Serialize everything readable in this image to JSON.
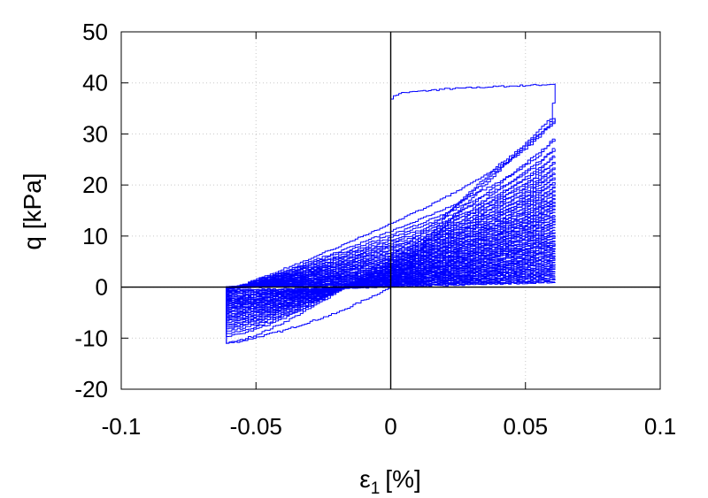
{
  "chart_data": {
    "type": "line",
    "title": "",
    "xlabel": {
      "symbol": "ε",
      "subscript": "1",
      "unit": "[%]"
    },
    "ylabel": "q [kPa]",
    "xlim": [
      -0.1,
      0.1
    ],
    "ylim": [
      -20,
      50
    ],
    "x_ticks": [
      -0.1,
      -0.05,
      0,
      0.05,
      0.1
    ],
    "x_tick_labels": [
      "-0.1",
      "-0.05",
      "0",
      "0.05",
      "0.1"
    ],
    "y_ticks": [
      -20,
      -10,
      0,
      10,
      20,
      30,
      40,
      50
    ],
    "y_tick_labels": [
      "-20",
      "-10",
      "0",
      "10",
      "20",
      "30",
      "40",
      "50"
    ],
    "grid": true,
    "grid_style": "dotted",
    "zero_lines": true,
    "series_color": "#0000ff",
    "series": [
      {
        "name": "",
        "description": "cyclic stress-strain loops with decaying amplitude",
        "x": [
          0.0,
          0.0,
          0.003,
          0.02,
          0.04,
          0.055,
          0.061,
          0.061,
          0.06,
          0.045,
          0.03,
          0.015,
          0.0,
          -0.015,
          -0.03,
          -0.045,
          -0.06,
          -0.061,
          -0.061,
          -0.055,
          -0.04,
          -0.02,
          0.0,
          0.02,
          0.04,
          0.06,
          0.061
        ],
        "y": [
          35.0,
          37.0,
          38.0,
          38.8,
          39.3,
          39.6,
          39.8,
          36.0,
          33.0,
          25.0,
          17.0,
          9.0,
          2.0,
          0.4,
          0.2,
          0.1,
          0.0,
          -0.5,
          -11.0,
          -10.5,
          -8.5,
          -5.0,
          0.0,
          14.0,
          24.0,
          32.0,
          33.0
        ]
      }
    ],
    "loops": {
      "count": 45,
      "positive_peaks_start": 33.0,
      "positive_peaks_end": 1.0,
      "negative_peaks_start": -11.0,
      "negative_peaks_end": -0.5,
      "strain_amplitude": 0.061
    }
  }
}
